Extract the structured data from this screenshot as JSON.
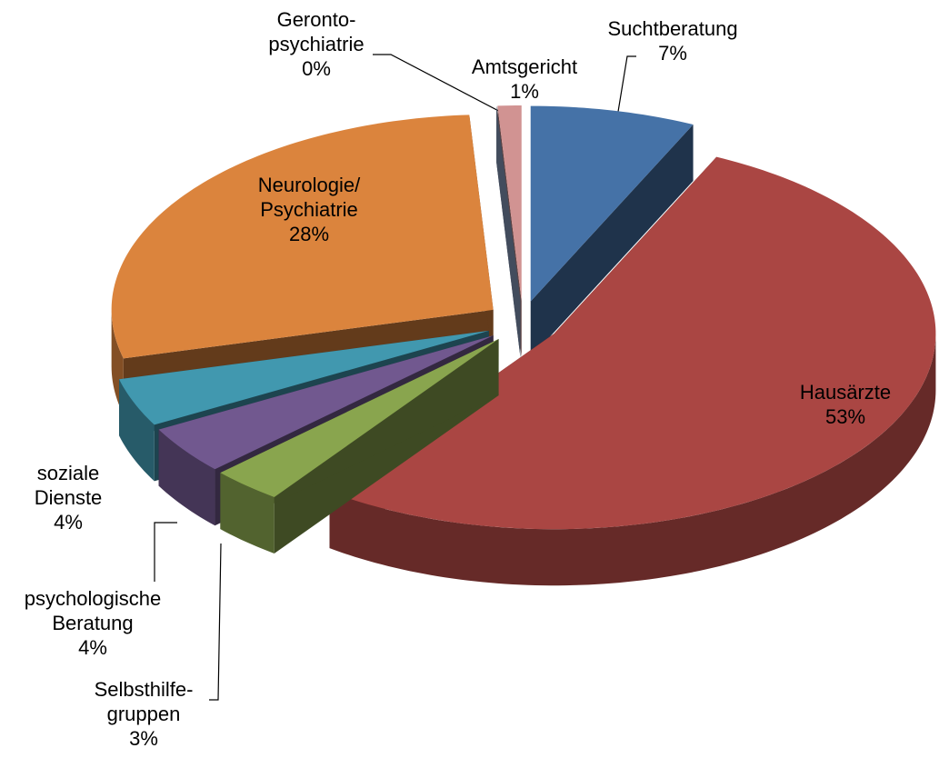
{
  "chart_data": {
    "type": "pie3d",
    "categories": [
      "Suchtberatung",
      "Hausärzte",
      "Selbsthilfe-\ngruppen",
      "psychologische\nBeratung",
      "soziale\nDienste",
      "Neurologie/\nPsychiatrie",
      "Geronto-\npsychiatrie",
      "Amtsgericht"
    ],
    "values": [
      7,
      53,
      3,
      4,
      4,
      28,
      0,
      1
    ],
    "value_labels": [
      "7%",
      "53%",
      "3%",
      "4%",
      "4%",
      "28%",
      "0%",
      "1%"
    ],
    "colors": [
      "#4572a7",
      "#aa4643",
      "#89a54e",
      "#71588f",
      "#4198af",
      "#db843d",
      "#93a9cf",
      "#d19392"
    ]
  }
}
